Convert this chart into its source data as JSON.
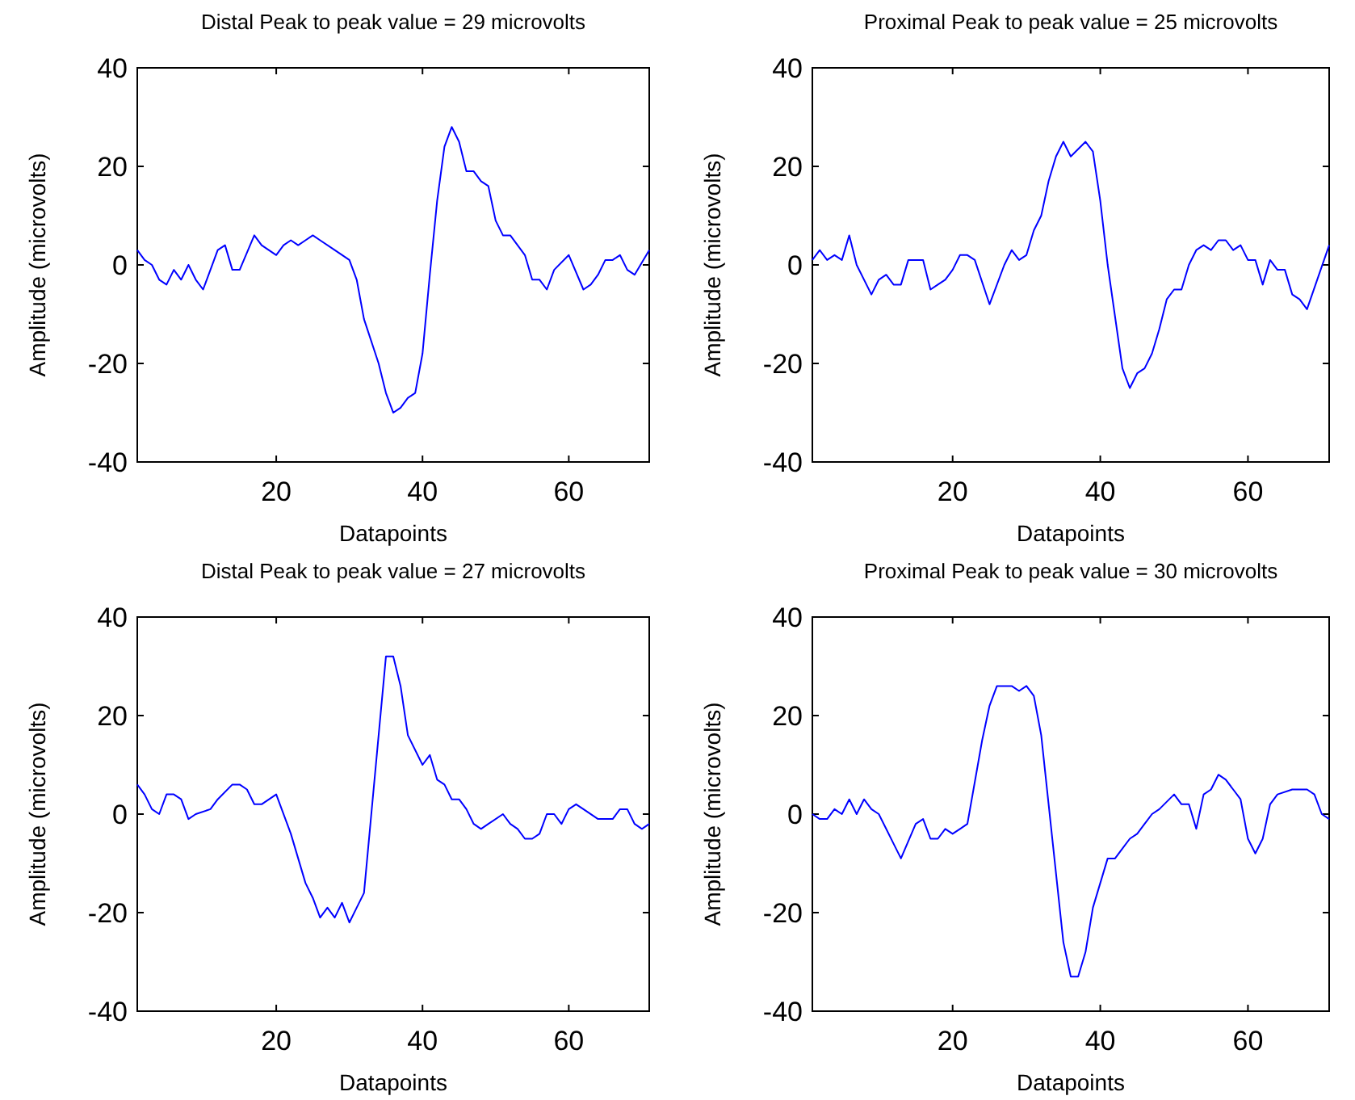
{
  "chart_data": [
    {
      "type": "line",
      "title": "Distal Peak to peak value = 29 microvolts",
      "xlabel": "Datapoints",
      "ylabel": "Amplitude (microvolts)",
      "xlim": [
        1,
        71
      ],
      "xticks": [
        20,
        40,
        60
      ],
      "ylim": [
        -40,
        40
      ],
      "yticks": [
        -40,
        -20,
        0,
        20,
        40
      ],
      "grid": false,
      "marker": "none",
      "line_style": "solid",
      "series": [
        {
          "color": "#0000ff",
          "x": [
            1,
            2,
            3,
            4,
            5,
            6,
            7,
            8,
            9,
            10,
            12,
            13,
            14,
            15,
            17,
            18,
            20,
            21,
            22,
            23,
            24,
            25,
            26,
            28,
            30,
            31,
            32,
            34,
            35,
            36,
            37,
            38,
            39,
            40,
            41,
            42,
            43,
            44,
            45,
            46,
            47,
            48,
            49,
            50,
            51,
            52,
            53,
            54,
            55,
            56,
            57,
            58,
            60,
            62,
            63,
            64,
            65,
            66,
            67,
            68,
            69,
            71
          ],
          "values": [
            3,
            1,
            0,
            -3,
            -4,
            -1,
            -3,
            0,
            -3,
            -5,
            3,
            4,
            -1,
            -1,
            6,
            4,
            2,
            4,
            5,
            4,
            5,
            6,
            5,
            3,
            1,
            -3,
            -11,
            -20,
            -26,
            -30,
            -29,
            -27,
            -26,
            -18,
            -2,
            13,
            24,
            28,
            25,
            19,
            19,
            17,
            16,
            9,
            6,
            6,
            4,
            2,
            -3,
            -3,
            -5,
            -1,
            2,
            -5,
            -4,
            -2,
            1,
            1,
            2,
            -1,
            -2,
            3
          ]
        }
      ]
    },
    {
      "type": "line",
      "title": "Proximal Peak to peak value = 25 microvolts",
      "xlabel": "Datapoints",
      "ylabel": "Amplitude (microvolts)",
      "xlim": [
        1,
        71
      ],
      "xticks": [
        20,
        40,
        60
      ],
      "ylim": [
        -40,
        40
      ],
      "yticks": [
        -40,
        -20,
        0,
        20,
        40
      ],
      "grid": false,
      "marker": "none",
      "line_style": "solid",
      "series": [
        {
          "color": "#0000ff",
          "x": [
            1,
            2,
            3,
            4,
            5,
            6,
            7,
            9,
            10,
            11,
            12,
            13,
            14,
            15,
            16,
            17,
            18,
            19,
            20,
            21,
            22,
            23,
            25,
            27,
            28,
            29,
            30,
            31,
            32,
            33,
            34,
            35,
            36,
            38,
            39,
            40,
            41,
            43,
            44,
            45,
            46,
            47,
            48,
            49,
            50,
            51,
            52,
            53,
            54,
            55,
            56,
            57,
            58,
            59,
            60,
            61,
            62,
            63,
            64,
            65,
            66,
            67,
            68,
            71
          ],
          "values": [
            1,
            3,
            1,
            2,
            1,
            6,
            0,
            -6,
            -3,
            -2,
            -4,
            -4,
            1,
            1,
            1,
            -5,
            -4,
            -3,
            -1,
            2,
            2,
            1,
            -8,
            0,
            3,
            1,
            2,
            7,
            10,
            17,
            22,
            25,
            22,
            25,
            23,
            13,
            0,
            -21,
            -25,
            -22,
            -21,
            -18,
            -13,
            -7,
            -5,
            -5,
            0,
            3,
            4,
            3,
            5,
            5,
            3,
            4,
            1,
            1,
            -4,
            1,
            -1,
            -1,
            -6,
            -7,
            -9,
            4
          ]
        }
      ]
    },
    {
      "type": "line",
      "title": "Distal Peak to peak value = 27 microvolts",
      "xlabel": "Datapoints",
      "ylabel": "Amplitude (microvolts)",
      "xlim": [
        1,
        71
      ],
      "xticks": [
        20,
        40,
        60
      ],
      "ylim": [
        -40,
        40
      ],
      "yticks": [
        -40,
        -20,
        0,
        20,
        40
      ],
      "grid": false,
      "marker": "none",
      "line_style": "solid",
      "series": [
        {
          "color": "#0000ff",
          "x": [
            1,
            2,
            3,
            4,
            5,
            6,
            7,
            8,
            9,
            11,
            12,
            14,
            15,
            16,
            17,
            18,
            20,
            22,
            24,
            25,
            26,
            27,
            28,
            29,
            30,
            31,
            32,
            35,
            36,
            37,
            38,
            40,
            41,
            42,
            43,
            44,
            45,
            46,
            47,
            48,
            49,
            51,
            52,
            53,
            54,
            55,
            56,
            57,
            58,
            59,
            60,
            61,
            62,
            64,
            66,
            67,
            68,
            69,
            70,
            71
          ],
          "values": [
            6,
            4,
            1,
            0,
            4,
            4,
            3,
            -1,
            0,
            1,
            3,
            6,
            6,
            5,
            2,
            2,
            4,
            -4,
            -14,
            -17,
            -21,
            -19,
            -21,
            -18,
            -22,
            -19,
            -16,
            32,
            32,
            26,
            16,
            10,
            12,
            7,
            6,
            3,
            3,
            1,
            -2,
            -3,
            -2,
            0,
            -2,
            -3,
            -5,
            -5,
            -4,
            0,
            0,
            -2,
            1,
            2,
            1,
            -1,
            -1,
            1,
            1,
            -2,
            -3,
            -2
          ]
        }
      ]
    },
    {
      "type": "line",
      "title": "Proximal Peak to peak value = 30 microvolts",
      "xlabel": "Datapoints",
      "ylabel": "Amplitude (microvolts)",
      "xlim": [
        1,
        71
      ],
      "xticks": [
        20,
        40,
        60
      ],
      "ylim": [
        -40,
        40
      ],
      "yticks": [
        -40,
        -20,
        0,
        20,
        40
      ],
      "grid": false,
      "marker": "none",
      "line_style": "solid",
      "series": [
        {
          "color": "#0000ff",
          "x": [
            1,
            2,
            3,
            4,
            5,
            6,
            7,
            8,
            9,
            10,
            11,
            12,
            13,
            15,
            16,
            17,
            18,
            19,
            20,
            21,
            22,
            24,
            25,
            26,
            28,
            29,
            30,
            31,
            32,
            35,
            36,
            37,
            38,
            39,
            41,
            42,
            43,
            44,
            45,
            46,
            47,
            48,
            50,
            51,
            52,
            53,
            54,
            55,
            56,
            57,
            58,
            59,
            60,
            61,
            62,
            63,
            64,
            66,
            67,
            68,
            69,
            70,
            71
          ],
          "values": [
            0,
            -1,
            -1,
            1,
            0,
            3,
            0,
            3,
            1,
            0,
            -3,
            -6,
            -9,
            -2,
            -1,
            -5,
            -5,
            -3,
            -4,
            -3,
            -2,
            15,
            22,
            26,
            26,
            25,
            26,
            24,
            16,
            -26,
            -33,
            -33,
            -28,
            -19,
            -9,
            -9,
            -7,
            -5,
            -4,
            -2,
            0,
            1,
            4,
            2,
            2,
            -3,
            4,
            5,
            8,
            7,
            5,
            3,
            -5,
            -8,
            -5,
            2,
            4,
            5,
            5,
            5,
            4,
            0,
            -1
          ]
        }
      ]
    }
  ]
}
